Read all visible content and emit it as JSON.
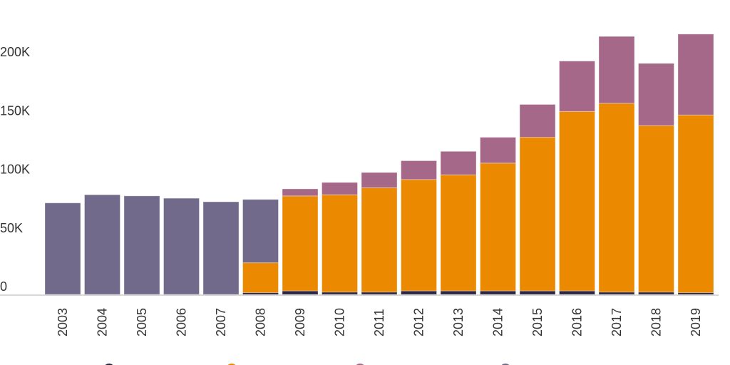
{
  "chart_data": {
    "type": "bar",
    "stacked": true,
    "title": "",
    "xlabel": "",
    "ylabel": "",
    "ylim": [
      0,
      225000
    ],
    "grid": false,
    "legend": "bottom",
    "categories": [
      "2003",
      "2004",
      "2005",
      "2006",
      "2007",
      "2008",
      "2009",
      "2010",
      "2011",
      "2012",
      "2013",
      "2014",
      "2015",
      "2016",
      "2017",
      "2018",
      "2019"
    ],
    "yticks": [
      {
        "value": 0,
        "label": "0"
      },
      {
        "value": 50000,
        "label": "50K"
      },
      {
        "value": 100000,
        "label": "100K"
      },
      {
        "value": 150000,
        "label": "150K"
      },
      {
        "value": 200000,
        "label": "200K"
      }
    ],
    "series": [
      {
        "color": "#2a2440",
        "values": [
          0,
          0,
          0,
          0,
          0,
          1500,
          3000,
          2000,
          2000,
          3000,
          3000,
          3000,
          3000,
          3000,
          2000,
          2000,
          1500
        ]
      },
      {
        "color": "#eb8a00",
        "values": [
          0,
          0,
          0,
          0,
          0,
          25500,
          81000,
          83000,
          89000,
          95000,
          99000,
          109000,
          131000,
          153000,
          161000,
          142000,
          151500
        ]
      },
      {
        "color": "#a66889",
        "values": [
          0,
          0,
          0,
          0,
          0,
          0,
          6000,
          10500,
          13000,
          16000,
          20000,
          22000,
          28000,
          43000,
          57000,
          53000,
          69000
        ]
      },
      {
        "color": "#716a8a",
        "values": [
          78000,
          85000,
          84000,
          82000,
          79000,
          54000,
          0,
          0,
          0,
          0,
          0,
          0,
          0,
          0,
          0,
          0,
          0
        ]
      }
    ]
  }
}
